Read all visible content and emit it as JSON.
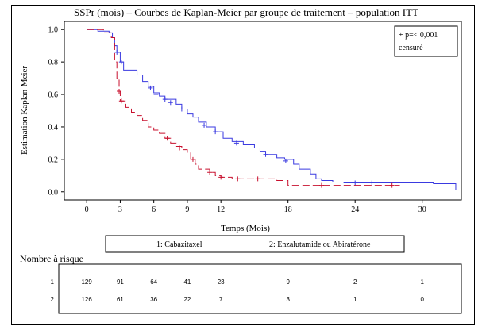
{
  "chart_data": {
    "type": "line",
    "title": "SSPr (mois) – Courbes de Kaplan-Meier par groupe de traitement – population ITT",
    "xlabel": "Temps (Mois)",
    "ylabel": "Estimation Kaplan-Meier",
    "xlim": [
      -2,
      33.5
    ],
    "ylim": [
      -0.05,
      1.05
    ],
    "xticks": [
      0,
      3,
      6,
      9,
      12,
      18,
      24,
      30
    ],
    "yticks": [
      0.0,
      0.2,
      0.4,
      0.6,
      0.8,
      1.0
    ],
    "ytick_labels": [
      "0.0",
      "0.2",
      "0.4",
      "0.6",
      "0.8",
      "1.0"
    ],
    "grid": false,
    "annotation": [
      "+ p=< 0,001",
      "censuré"
    ],
    "legend_placement": "bottom",
    "series": [
      {
        "name": "1: Cabazitaxel",
        "color": "#3a3ae0",
        "dash": "solid",
        "steps": [
          [
            0,
            1.0
          ],
          [
            1,
            0.99
          ],
          [
            2,
            0.98
          ],
          [
            2.3,
            0.95
          ],
          [
            2.5,
            0.9
          ],
          [
            2.7,
            0.86
          ],
          [
            3.0,
            0.8
          ],
          [
            3.3,
            0.75
          ],
          [
            4.5,
            0.72
          ],
          [
            5,
            0.68
          ],
          [
            5.5,
            0.65
          ],
          [
            6,
            0.61
          ],
          [
            6.5,
            0.59
          ],
          [
            7,
            0.57
          ],
          [
            8,
            0.54
          ],
          [
            8.5,
            0.51
          ],
          [
            9,
            0.48
          ],
          [
            9.5,
            0.46
          ],
          [
            10,
            0.43
          ],
          [
            10.7,
            0.4
          ],
          [
            11.5,
            0.37
          ],
          [
            12.2,
            0.33
          ],
          [
            13,
            0.31
          ],
          [
            14,
            0.29
          ],
          [
            15,
            0.27
          ],
          [
            15.5,
            0.25
          ],
          [
            16,
            0.23
          ],
          [
            17,
            0.21
          ],
          [
            17.7,
            0.2
          ],
          [
            18.5,
            0.17
          ],
          [
            19,
            0.14
          ],
          [
            20,
            0.11
          ],
          [
            20.5,
            0.08
          ],
          [
            21,
            0.07
          ],
          [
            22,
            0.06
          ],
          [
            23,
            0.055
          ],
          [
            31,
            0.05
          ],
          [
            33,
            0.01
          ]
        ],
        "censored": [
          [
            2.7,
            0.86
          ],
          [
            3.1,
            0.8
          ],
          [
            5.7,
            0.64
          ],
          [
            6.2,
            0.6
          ],
          [
            7,
            0.57
          ],
          [
            7.5,
            0.55
          ],
          [
            8.5,
            0.51
          ],
          [
            10.5,
            0.41
          ],
          [
            11.5,
            0.37
          ],
          [
            13.4,
            0.3
          ],
          [
            16,
            0.23
          ],
          [
            17.8,
            0.19
          ],
          [
            24,
            0.055
          ],
          [
            25.5,
            0.055
          ]
        ]
      },
      {
        "name": "2: Enzalutamide ou Abiratérone",
        "color": "#c8102e",
        "dash": "dashed",
        "steps": [
          [
            0,
            1.0
          ],
          [
            1.5,
            0.98
          ],
          [
            2.2,
            0.95
          ],
          [
            2.5,
            0.8
          ],
          [
            2.7,
            0.7
          ],
          [
            2.9,
            0.62
          ],
          [
            3,
            0.56
          ],
          [
            3.5,
            0.52
          ],
          [
            4,
            0.49
          ],
          [
            4.5,
            0.47
          ],
          [
            5,
            0.44
          ],
          [
            5.5,
            0.4
          ],
          [
            6,
            0.38
          ],
          [
            6.5,
            0.36
          ],
          [
            7,
            0.33
          ],
          [
            7.5,
            0.3
          ],
          [
            8,
            0.28
          ],
          [
            8.5,
            0.26
          ],
          [
            9,
            0.24
          ],
          [
            9.3,
            0.2
          ],
          [
            9.7,
            0.17
          ],
          [
            10,
            0.14
          ],
          [
            11,
            0.12
          ],
          [
            11.5,
            0.1
          ],
          [
            12,
            0.09
          ],
          [
            13,
            0.08
          ],
          [
            17,
            0.07
          ],
          [
            18,
            0.04
          ],
          [
            28,
            0.04
          ]
        ],
        "censored": [
          [
            2.9,
            0.62
          ],
          [
            3.1,
            0.56
          ],
          [
            7.2,
            0.33
          ],
          [
            8.3,
            0.27
          ],
          [
            9.5,
            0.2
          ],
          [
            11,
            0.12
          ],
          [
            12,
            0.09
          ],
          [
            13.5,
            0.08
          ],
          [
            15.3,
            0.08
          ],
          [
            21,
            0.04
          ],
          [
            27.3,
            0.04
          ]
        ]
      }
    ]
  },
  "risk_table": {
    "title": "Nombre à risque",
    "times": [
      0,
      3,
      6,
      9,
      12,
      18,
      24,
      30
    ],
    "rows": [
      {
        "label": "1",
        "values": [
          "129",
          "91",
          "64",
          "41",
          "23",
          "9",
          "2",
          "1"
        ]
      },
      {
        "label": "2",
        "values": [
          "126",
          "61",
          "36",
          "22",
          "7",
          "3",
          "1",
          "0"
        ]
      }
    ]
  }
}
